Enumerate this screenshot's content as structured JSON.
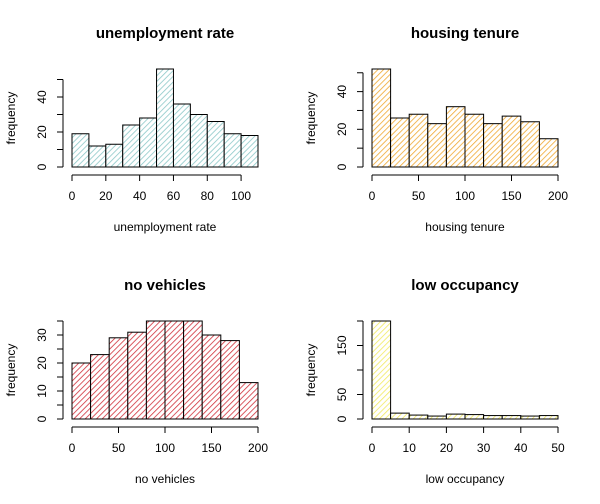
{
  "chart_data": [
    {
      "type": "histogram",
      "title": "unemployment rate",
      "xlabel": "unemployment rate",
      "ylabel": "frequency",
      "bins": [
        0,
        10,
        20,
        30,
        40,
        50,
        60,
        70,
        80,
        90,
        100,
        110
      ],
      "values": [
        19,
        12,
        13,
        24,
        28,
        56,
        36,
        30,
        26,
        19,
        18
      ],
      "color": "#8cc8c8",
      "xlim": [
        0,
        110
      ],
      "ylim": [
        0,
        56
      ],
      "xticks": [
        0,
        20,
        40,
        60,
        80,
        100
      ],
      "yticks": [
        0,
        20,
        40
      ],
      "yticks_minor": [
        10,
        30,
        50
      ]
    },
    {
      "type": "histogram",
      "title": "housing tenure",
      "xlabel": "housing tenure",
      "ylabel": "frequency",
      "bins": [
        0,
        20,
        40,
        60,
        80,
        100,
        120,
        140,
        160,
        180,
        200
      ],
      "values": [
        52,
        26,
        28,
        23,
        32,
        28,
        23,
        27,
        24,
        15
      ],
      "color": "#f0a830",
      "xlim": [
        0,
        200
      ],
      "ylim": [
        0,
        52
      ],
      "xticks": [
        0,
        50,
        100,
        150,
        200
      ],
      "yticks": [
        0,
        20,
        40
      ],
      "yticks_minor": [
        10,
        30,
        50
      ]
    },
    {
      "type": "histogram",
      "title": "no vehicles",
      "xlabel": "no vehicles",
      "ylabel": "frequency",
      "bins": [
        0,
        20,
        40,
        60,
        80,
        100,
        120,
        140,
        160,
        180,
        200
      ],
      "values": [
        20,
        23,
        29,
        31,
        35,
        35,
        35,
        30,
        28,
        13
      ],
      "color": "#d0303a",
      "xlim": [
        0,
        200
      ],
      "ylim": [
        0,
        35
      ],
      "xticks": [
        0,
        50,
        100,
        150,
        200
      ],
      "yticks": [
        0,
        10,
        20,
        30
      ],
      "yticks_minor": [
        5,
        15,
        25,
        35
      ]
    },
    {
      "type": "histogram",
      "title": "low occupancy",
      "xlabel": "low occupancy",
      "ylabel": "frequency",
      "bins": [
        0,
        5,
        10,
        15,
        20,
        25,
        30,
        35,
        40,
        45,
        50
      ],
      "values": [
        200,
        12,
        8,
        6,
        10,
        9,
        7,
        7,
        6,
        7
      ],
      "color": "#f2ea60",
      "xlim": [
        0,
        50
      ],
      "ylim": [
        0,
        200
      ],
      "xticks": [
        0,
        10,
        20,
        30,
        40,
        50
      ],
      "yticks": [
        0,
        50,
        150
      ],
      "yticks_minor": [
        100,
        200
      ]
    }
  ]
}
